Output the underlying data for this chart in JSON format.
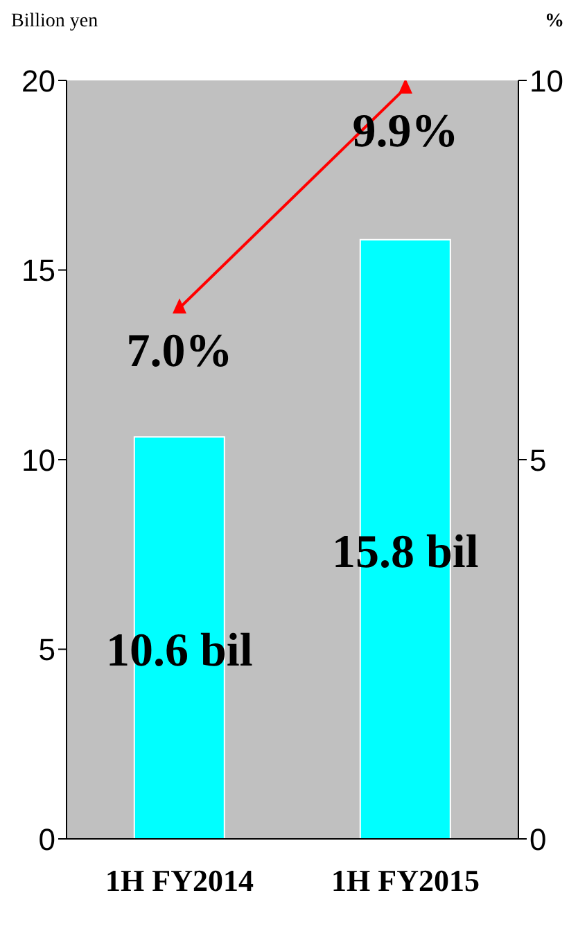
{
  "chart_data": {
    "type": "bar",
    "ylabel": "Billion yen",
    "y2label": "%",
    "categories": [
      "1H FY2014",
      "1H FY2015"
    ],
    "series": [
      {
        "color": "#00ffff",
        "values": [
          10.6,
          15.8
        ],
        "value_labels": [
          "10.6 bil",
          "15.8 bil"
        ]
      },
      {
        "type": "line",
        "axis": "y2",
        "color": "#ff0000",
        "marker": "triangle",
        "values": [
          7.0,
          9.9
        ],
        "value_labels": [
          "7.0%",
          "9.9%"
        ]
      }
    ],
    "ylim": [
      0,
      20
    ],
    "yticks": [
      0,
      5,
      10,
      15,
      20
    ],
    "y2lim": [
      0,
      10
    ],
    "y2ticks": [
      0,
      5,
      10
    ]
  }
}
